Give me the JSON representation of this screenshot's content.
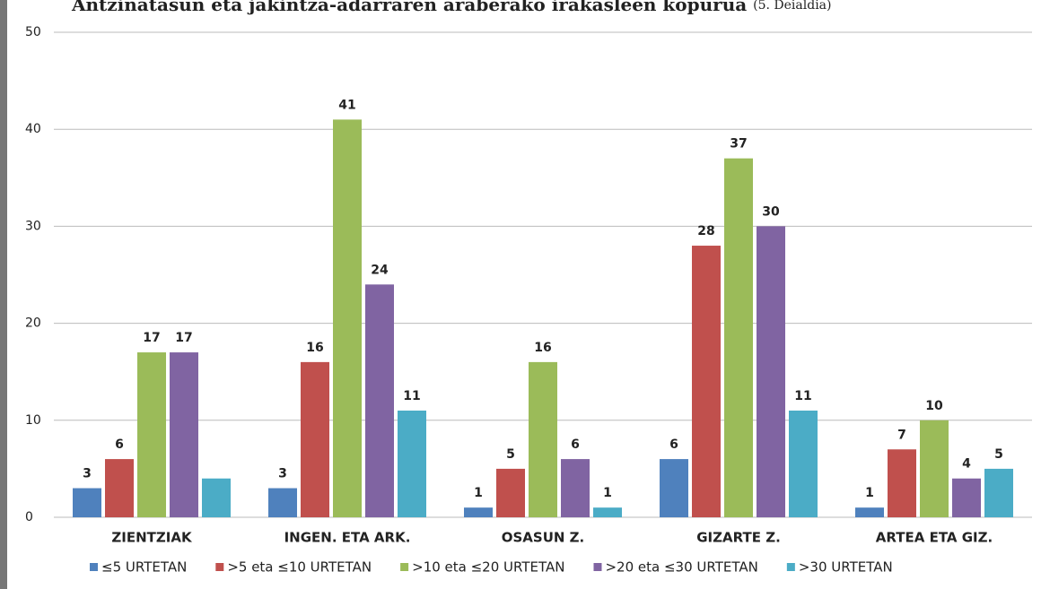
{
  "chart_data": {
    "type": "bar",
    "title": "Antzinatasun eta jakintza-adarraren araberako irakasleen kopurua",
    "subtitle": "(5. Deialdia)",
    "categories": [
      "ZIENTZIAK",
      "INGEN. ETA ARK.",
      "OSASUN Z.",
      "GIZARTE Z.",
      "ARTEA ETA GIZ."
    ],
    "series": [
      {
        "name": "≤5 URTETAN",
        "color": "#4f81bd",
        "values": [
          3,
          3,
          1,
          6,
          1
        ]
      },
      {
        "name": ">5 eta ≤10 URTETAN",
        "color": "#c0504d",
        "values": [
          6,
          16,
          5,
          28,
          7
        ]
      },
      {
        "name": ">10 eta ≤20 URTETAN",
        "color": "#9bbb59",
        "values": [
          17,
          41,
          16,
          37,
          10
        ]
      },
      {
        "name": ">20 eta ≤30 URTETAN",
        "color": "#8064a2",
        "values": [
          17,
          24,
          6,
          30,
          4
        ]
      },
      {
        "name": ">30 URTETAN",
        "color": "#4bacc6",
        "values": [
          4,
          11,
          1,
          11,
          5
        ],
        "value_labels": [
          null,
          "11",
          "1",
          "11",
          "5"
        ]
      }
    ],
    "ylim": [
      0,
      50
    ],
    "yticks": [
      0,
      10,
      20,
      30,
      40,
      50
    ],
    "grid": true,
    "legend": "bottom"
  }
}
